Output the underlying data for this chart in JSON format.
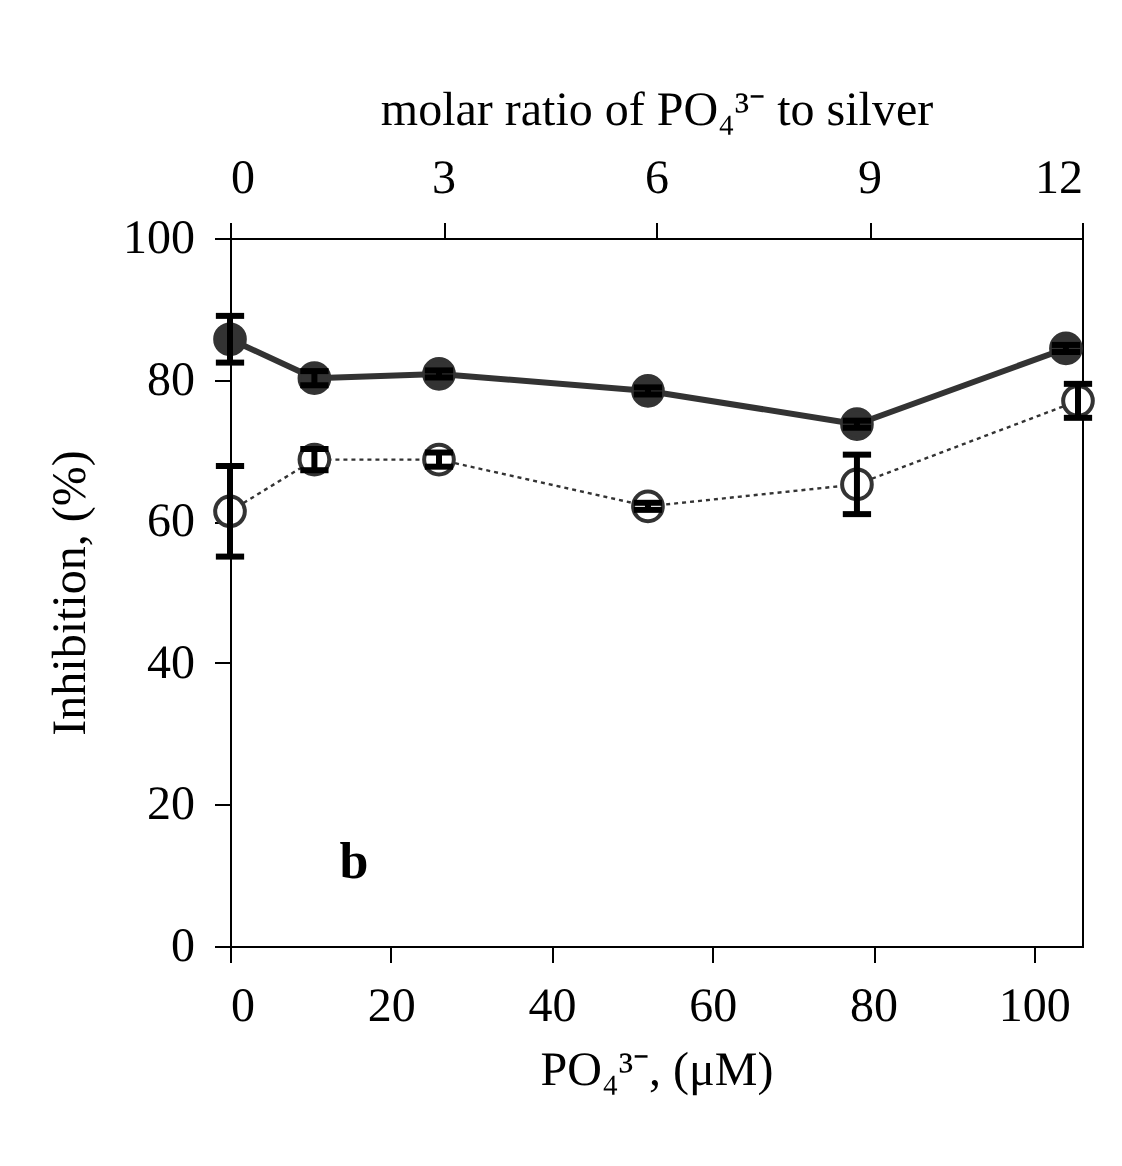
{
  "chart_data": {
    "type": "line",
    "xlabel": "PO₄³⁻, (μM)",
    "ylabel": "Inhibition, (%)",
    "x2label": "molar ratio of PO₄³⁻ to silver",
    "x": [
      0,
      10.5,
      26,
      52,
      78,
      104
    ],
    "series": [
      {
        "color": "#333333",
        "line_style": "solid",
        "marker": "circle",
        "values": [
          85.7,
          80.2,
          80.8,
          78.4,
          73.7,
          84.4
        ],
        "errors": [
          3.3,
          1,
          0.5,
          0.5,
          0.5,
          0.5
        ]
      },
      {
        "color": "#333333",
        "line_style": "dotted",
        "marker": "circle",
        "x": [
          0,
          10.5,
          26,
          52,
          78,
          105.5
        ],
        "values": [
          61.4,
          68.7,
          68.7,
          62.1,
          65.2,
          77.0
        ],
        "errors": [
          6.4,
          1.5,
          1,
          0.5,
          4.2,
          2.4
        ]
      }
    ],
    "xlim": [
      0,
      106
    ],
    "xticks": [
      0,
      20,
      40,
      60,
      80,
      100
    ],
    "x2lim": [
      0,
      12
    ],
    "x2ticks": [
      0,
      3,
      6,
      9,
      12
    ],
    "ylim": [
      0,
      100
    ],
    "yticks": [
      0,
      20,
      40,
      60,
      80,
      100
    ],
    "annotations": [
      "b"
    ],
    "grid": false
  }
}
